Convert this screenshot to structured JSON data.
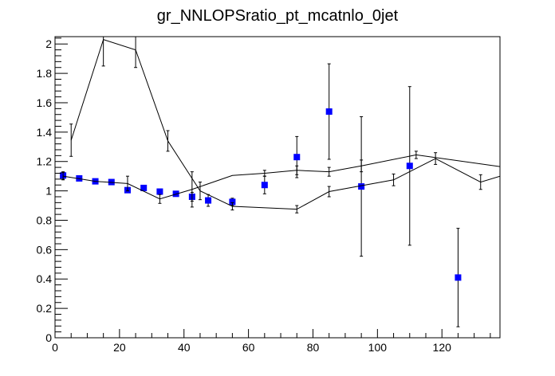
{
  "chart_data": {
    "type": "scatter",
    "title": "gr_NNLOPSratio_pt_mcatnlo_0jet",
    "xlabel": "",
    "ylabel": "",
    "xlim": [
      0,
      138
    ],
    "ylim": [
      0,
      2.05
    ],
    "grid": false,
    "x_ticks": [
      0,
      20,
      40,
      60,
      80,
      100,
      120
    ],
    "y_ticks": [
      0,
      0.2,
      0.4,
      0.6,
      0.8,
      1,
      1.2,
      1.4,
      1.6,
      1.8,
      2
    ],
    "colors": {
      "markers": "#0000ff",
      "lines": "#000000",
      "frame": "#000000"
    },
    "series": [
      {
        "style": "markers-with-errorbars",
        "points": [
          {
            "x": 2.5,
            "y": 1.105,
            "err": 0.025
          },
          {
            "x": 7.5,
            "y": 1.085,
            "err": 0.0
          },
          {
            "x": 12.5,
            "y": 1.065,
            "err": 0.0
          },
          {
            "x": 17.5,
            "y": 1.06,
            "err": 0.0
          },
          {
            "x": 22.5,
            "y": 1.005,
            "err": 0.0
          },
          {
            "x": 27.5,
            "y": 1.02,
            "err": 0.0
          },
          {
            "x": 32.5,
            "y": 0.995,
            "err": 0.015
          },
          {
            "x": 37.5,
            "y": 0.98,
            "err": 0.015
          },
          {
            "x": 42.5,
            "y": 0.96,
            "err": 0.03
          },
          {
            "x": 47.5,
            "y": 0.935,
            "err": 0.04
          },
          {
            "x": 55,
            "y": 0.925,
            "err": 0.025
          },
          {
            "x": 65,
            "y": 1.04,
            "err": 0.06
          },
          {
            "x": 75,
            "y": 1.23,
            "err": 0.14
          },
          {
            "x": 85,
            "y": 1.54,
            "err": 0.325
          },
          {
            "x": 95,
            "y": 1.03,
            "err": 0.475
          },
          {
            "x": 110,
            "y": 1.17,
            "err": 0.54
          },
          {
            "x": 125,
            "y": 0.41,
            "err": 0.335
          }
        ]
      },
      {
        "style": "line-with-errorbars",
        "points": [
          {
            "x": 5,
            "y": 1.345,
            "err": 0.11
          },
          {
            "x": 15,
            "y": 2.03,
            "err": 0.18
          },
          {
            "x": 25,
            "y": 1.96,
            "err": 0.12
          },
          {
            "x": 35,
            "y": 1.34,
            "err": 0.07
          },
          {
            "x": 45,
            "y": 1.0,
            "err": 0.06
          },
          {
            "x": 55,
            "y": 0.895,
            "err": 0.025
          },
          {
            "x": 75,
            "y": 0.875,
            "err": 0.025
          },
          {
            "x": 85,
            "y": 0.995,
            "err": 0.035
          },
          {
            "x": 105,
            "y": 1.075,
            "err": 0.04
          },
          {
            "x": 118,
            "y": 1.22,
            "err": 0.04
          },
          {
            "x": 132,
            "y": 1.06,
            "err": 0.05
          },
          {
            "x": 138,
            "y": 1.1,
            "err": 0.0
          }
        ]
      },
      {
        "style": "line-with-errorbars",
        "points": [
          {
            "x": 2.5,
            "y": 1.1,
            "err": 0.025
          },
          {
            "x": 12.5,
            "y": 1.065,
            "err": 0.0
          },
          {
            "x": 22.5,
            "y": 1.05,
            "err": 0.05
          },
          {
            "x": 32.5,
            "y": 0.945,
            "err": 0.03
          },
          {
            "x": 42.5,
            "y": 1.01,
            "err": 0.12
          },
          {
            "x": 55,
            "y": 1.105,
            "err": 0.0
          },
          {
            "x": 65,
            "y": 1.12,
            "err": 0.02
          },
          {
            "x": 75,
            "y": 1.14,
            "err": 0.03
          },
          {
            "x": 85,
            "y": 1.13,
            "err": 0.03
          },
          {
            "x": 95,
            "y": 1.17,
            "err": 0.04
          },
          {
            "x": 112,
            "y": 1.245,
            "err": 0.025
          },
          {
            "x": 138,
            "y": 1.165,
            "err": 0.0
          }
        ]
      }
    ]
  }
}
